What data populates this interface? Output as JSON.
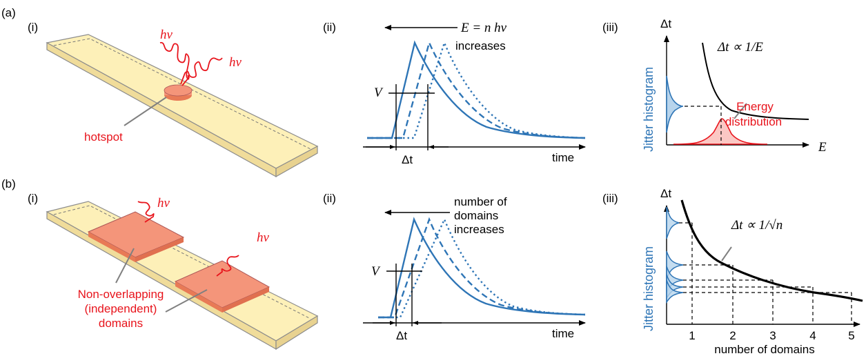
{
  "panel_a": {
    "tag": "(a)",
    "i": {
      "tag": "(i)",
      "photon1": "hν",
      "photon2": "hν",
      "hotspot": "hotspot"
    },
    "ii": {
      "tag": "(ii)",
      "eq": "E = n hν",
      "eq_sub": "increases",
      "v": "V",
      "dt": "Δt",
      "time": "time"
    },
    "iii": {
      "tag": "(iii)",
      "yaxis": "Δt",
      "xaxis": "E",
      "relation": "Δt ∝ 1/E",
      "energy1": "Energy",
      "energy2": "distribution",
      "jitter": "Jitter histogram"
    }
  },
  "panel_b": {
    "tag": "(b)",
    "i": {
      "tag": "(i)",
      "photon1": "hν",
      "photon2": "hν",
      "domains1": "Non-overlapping",
      "domains2": "(independent)",
      "domains3": "domains"
    },
    "ii": {
      "tag": "(ii)",
      "t1": "number of",
      "t2": "domains",
      "t3": "increases",
      "v": "V",
      "dt": "Δt",
      "time": "time"
    },
    "iii": {
      "tag": "(iii)",
      "yaxis": "Δt",
      "relation": "Δt ∝ 1/√n",
      "ticks": [
        "1",
        "2",
        "3",
        "4",
        "5"
      ],
      "xlabel": "number of domains",
      "jitter": "Jitter histogram"
    }
  },
  "colors": {
    "strip": "#fdf0b8",
    "strip_edge": "#8c8c8c",
    "domain": "#f4957a",
    "curve": "#2e75b6",
    "red": "#e8141c"
  }
}
